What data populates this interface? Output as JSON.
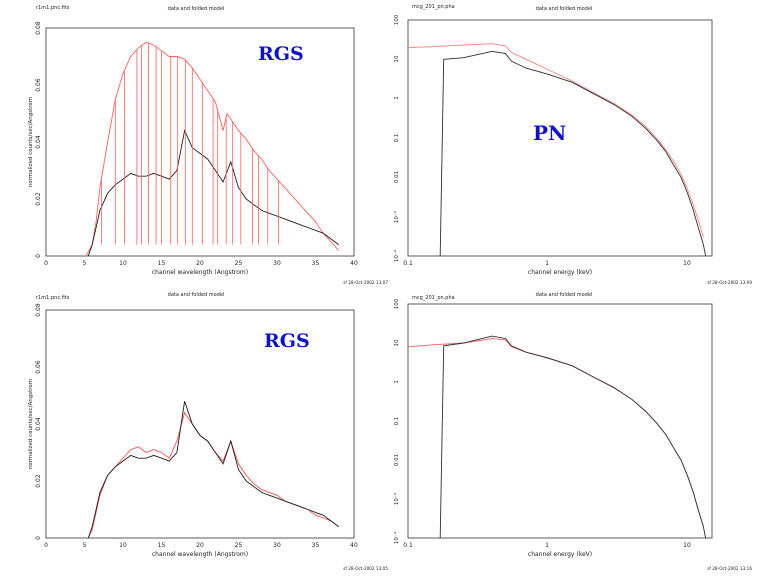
{
  "panels": [
    {
      "id": "top-left",
      "corner_label": "r1m1:pnc.fits",
      "title": "data and folded model",
      "xlabel": "channel wavelength (Angstrom)",
      "ylabel": "normalized counts/sec/Angstrom",
      "xticks": [
        "0",
        "5",
        "10",
        "15",
        "20",
        "25",
        "30",
        "35",
        "40"
      ],
      "yticks": [
        "0",
        "0.02",
        "0.04",
        "0.06",
        "0.08"
      ],
      "timestamp": "sf 28-Oct-2002 13:07",
      "overlay": "RGS"
    },
    {
      "id": "top-right",
      "corner_label": "mcg_201_pn.pha",
      "title": "data and folded model",
      "xlabel": "channel energy (keV)",
      "ylabel": "",
      "xticks": [
        "0.1",
        "1",
        "10"
      ],
      "yticks": [
        "10⁻⁴",
        "10⁻³",
        "0.01",
        "0.1",
        "1",
        "10",
        "100"
      ],
      "timestamp": "sf 28-Oct-2002 13:09",
      "overlay": "PN"
    },
    {
      "id": "bottom-left",
      "corner_label": "r1m1:pnc.fits",
      "title": "data and folded model",
      "xlabel": "channel wavelength (Angstrom)",
      "ylabel": "normalized counts/sec/Angstrom",
      "xticks": [
        "0",
        "5",
        "10",
        "15",
        "20",
        "25",
        "30",
        "35",
        "40"
      ],
      "yticks": [
        "0",
        "0.02",
        "0.04",
        "0.06",
        "0.08"
      ],
      "timestamp": "sf 28-Oct-2002 13:05",
      "overlay": "RGS"
    },
    {
      "id": "bottom-right",
      "corner_label": "mcg_201_pn.pha",
      "title": "data and folded model",
      "xlabel": "channel energy (keV)",
      "ylabel": "",
      "xticks": [
        "0.1",
        "1",
        "10"
      ],
      "yticks": [
        "10⁻⁴",
        "10⁻³",
        "0.01",
        "0.1",
        "1",
        "10",
        "100"
      ],
      "timestamp": "sf 28-Oct-2002 13:16",
      "overlay": ""
    }
  ],
  "chart_data": [
    {
      "type": "line",
      "xlim": [
        0,
        40
      ],
      "ylim": [
        0,
        0.08
      ],
      "yscale": "linear",
      "grid": false,
      "series": [
        {
          "color": "#ff6060",
          "x": [
            5.2,
            6,
            6.5,
            7,
            8,
            9,
            10,
            11,
            12,
            13,
            14,
            15,
            16,
            17,
            18,
            19,
            20,
            21,
            22,
            23,
            23.5,
            24,
            25,
            26,
            27,
            28,
            29,
            30,
            31,
            32,
            33,
            34,
            35,
            36,
            37,
            38
          ],
          "y": [
            0,
            0.004,
            0.012,
            0.024,
            0.04,
            0.055,
            0.064,
            0.07,
            0.073,
            0.075,
            0.074,
            0.072,
            0.07,
            0.07,
            0.069,
            0.066,
            0.062,
            0.058,
            0.054,
            0.044,
            0.05,
            0.048,
            0.044,
            0.041,
            0.037,
            0.034,
            0.03,
            0.027,
            0.024,
            0.021,
            0.018,
            0.015,
            0.012,
            0.008,
            0.005,
            0.002
          ]
        },
        {
          "color": "#202020",
          "x": [
            5.5,
            6,
            6.5,
            7,
            8,
            9,
            10,
            11,
            12,
            13,
            14,
            15,
            16,
            17,
            18,
            19,
            20,
            21,
            22,
            23,
            24,
            25,
            26,
            27,
            28,
            29,
            30,
            31,
            32,
            33,
            34,
            35,
            36,
            37,
            38
          ],
          "y": [
            0,
            0.004,
            0.01,
            0.016,
            0.022,
            0.025,
            0.027,
            0.029,
            0.028,
            0.028,
            0.029,
            0.028,
            0.027,
            0.03,
            0.044,
            0.038,
            0.036,
            0.034,
            0.03,
            0.026,
            0.033,
            0.024,
            0.02,
            0.018,
            0.016,
            0.015,
            0.014,
            0.013,
            0.012,
            0.011,
            0.01,
            0.009,
            0.008,
            0.006,
            0.004
          ]
        }
      ],
      "red_spike_x": [
        7.2,
        9,
        10.2,
        11.8,
        12.4,
        13.3,
        14.3,
        15,
        16.2,
        17.1,
        18.1,
        19,
        20.3,
        21.7,
        22.3,
        23.4,
        24.2,
        25.3,
        26.8,
        27.6,
        28.8,
        30.2
      ],
      "red_spike_floor": 0.004
    },
    {
      "type": "line",
      "xlim": [
        0.1,
        15
      ],
      "ylim": [
        0.0001,
        100
      ],
      "xscale": "log",
      "yscale": "log",
      "grid": false,
      "series": [
        {
          "color": "#ff8080",
          "x": [
            0.1,
            0.15,
            0.25,
            0.4,
            0.5,
            0.55,
            0.7,
            1,
            1.5,
            2,
            3,
            4,
            5,
            6,
            7,
            8,
            9,
            10,
            11,
            12,
            13
          ],
          "y": [
            20,
            21,
            23,
            25,
            22,
            15,
            10,
            5.5,
            2.8,
            1.6,
            0.75,
            0.38,
            0.2,
            0.1,
            0.05,
            0.025,
            0.012,
            0.005,
            0.002,
            0.0008,
            0.0003
          ]
        },
        {
          "color": "#303030",
          "x": [
            0.17,
            0.18,
            0.25,
            0.4,
            0.5,
            0.55,
            0.7,
            1,
            1.5,
            2,
            3,
            4,
            5,
            6,
            7,
            8,
            9,
            10,
            11,
            12,
            13,
            13.5
          ],
          "y": [
            0.0001,
            10,
            11,
            16,
            14,
            9,
            6,
            4.2,
            2.6,
            1.5,
            0.7,
            0.36,
            0.18,
            0.09,
            0.045,
            0.02,
            0.01,
            0.004,
            0.0015,
            0.0005,
            0.0002,
            0.0001
          ]
        }
      ]
    },
    {
      "type": "line",
      "xlim": [
        0,
        40
      ],
      "ylim": [
        0,
        0.08
      ],
      "yscale": "linear",
      "grid": false,
      "series": [
        {
          "color": "#ff5050",
          "x": [
            5.5,
            6,
            6.5,
            7,
            8,
            9,
            10,
            11,
            12,
            13,
            14,
            15,
            16,
            17,
            18,
            19,
            20,
            21,
            22,
            23,
            24,
            25,
            26,
            27,
            28,
            29,
            30,
            31,
            32,
            33,
            34,
            35,
            36,
            37,
            38
          ],
          "y": [
            0,
            0.003,
            0.009,
            0.015,
            0.022,
            0.025,
            0.028,
            0.031,
            0.032,
            0.03,
            0.031,
            0.03,
            0.028,
            0.034,
            0.044,
            0.04,
            0.036,
            0.034,
            0.03,
            0.027,
            0.034,
            0.026,
            0.022,
            0.019,
            0.017,
            0.016,
            0.015,
            0.013,
            0.012,
            0.011,
            0.01,
            0.008,
            0.007,
            0.006,
            0.004
          ]
        },
        {
          "color": "#202020",
          "x": [
            5.5,
            6,
            6.5,
            7,
            8,
            9,
            10,
            11,
            12,
            13,
            14,
            15,
            16,
            17,
            18,
            19,
            20,
            21,
            22,
            23,
            24,
            25,
            26,
            27,
            28,
            29,
            30,
            31,
            32,
            33,
            34,
            35,
            36,
            37,
            38
          ],
          "y": [
            0,
            0.004,
            0.01,
            0.016,
            0.022,
            0.025,
            0.027,
            0.029,
            0.028,
            0.028,
            0.029,
            0.028,
            0.027,
            0.03,
            0.048,
            0.04,
            0.036,
            0.034,
            0.03,
            0.026,
            0.034,
            0.024,
            0.02,
            0.018,
            0.016,
            0.015,
            0.014,
            0.013,
            0.012,
            0.011,
            0.01,
            0.009,
            0.008,
            0.006,
            0.004
          ]
        }
      ]
    },
    {
      "type": "line",
      "xlim": [
        0.1,
        15
      ],
      "ylim": [
        0.0001,
        100
      ],
      "xscale": "log",
      "yscale": "log",
      "grid": false,
      "series": [
        {
          "color": "#ff6060",
          "x": [
            0.1,
            0.15,
            0.25,
            0.4,
            0.5,
            0.55,
            0.7,
            1,
            1.5,
            2,
            3,
            4,
            5,
            6,
            7,
            8,
            9,
            10,
            11,
            12,
            13
          ],
          "y": [
            8,
            9,
            10,
            13,
            12,
            8,
            5.8,
            4.2,
            2.6,
            1.5,
            0.72,
            0.36,
            0.18,
            0.09,
            0.045,
            0.02,
            0.01,
            0.004,
            0.0015,
            0.0005,
            0.0002
          ]
        },
        {
          "color": "#303030",
          "x": [
            0.17,
            0.18,
            0.25,
            0.4,
            0.5,
            0.55,
            0.7,
            1,
            1.5,
            2,
            3,
            4,
            5,
            6,
            7,
            8,
            9,
            10,
            11,
            12,
            13,
            13.5
          ],
          "y": [
            0.0001,
            8.5,
            10,
            15,
            13,
            8.5,
            5.8,
            4.1,
            2.6,
            1.5,
            0.7,
            0.36,
            0.18,
            0.09,
            0.045,
            0.02,
            0.01,
            0.004,
            0.0015,
            0.0005,
            0.0002,
            0.0001
          ]
        }
      ]
    }
  ]
}
